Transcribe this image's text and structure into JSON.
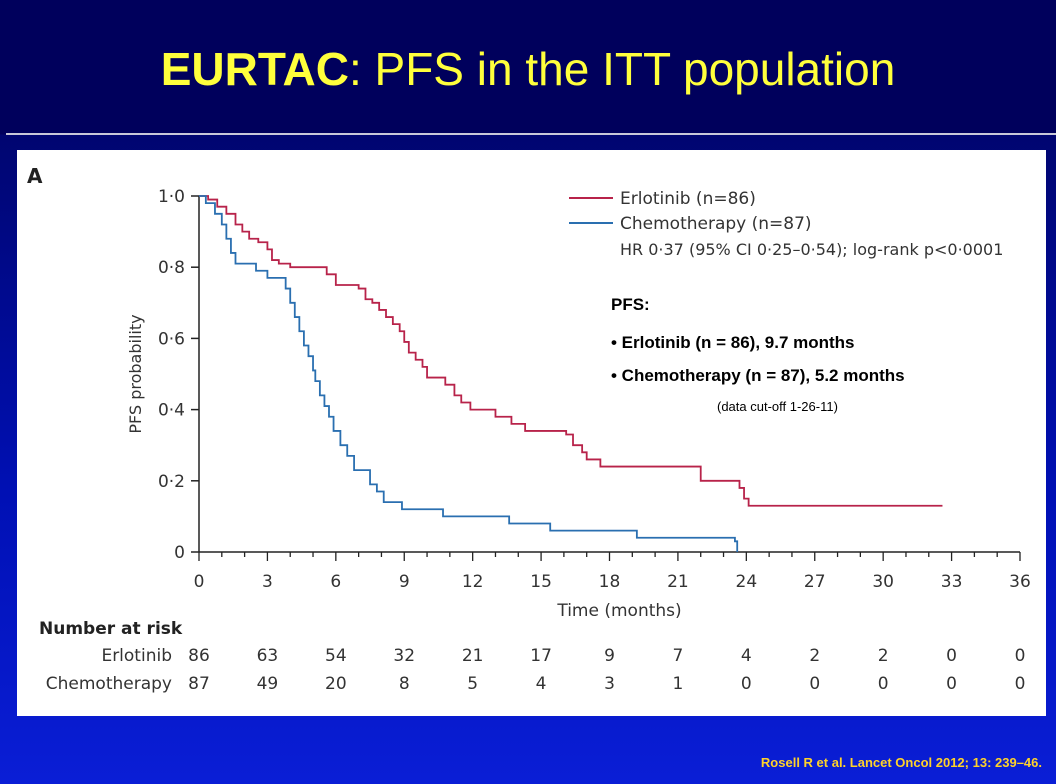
{
  "slide": {
    "title_bold": "EURTAC",
    "title_rest": ": PFS in the ITT population",
    "citation": "Rosell R et al. Lancet Oncol 2012; 13: 239–46.",
    "colors": {
      "title": "#ffff3c",
      "background": "#020266",
      "citation": "#ffd22a"
    }
  },
  "chart_data": {
    "type": "line",
    "panel_label": "A",
    "xlabel": "Time (months)",
    "ylabel": "PFS probability",
    "xlim": [
      0,
      36
    ],
    "ylim": [
      0,
      1
    ],
    "x_ticks": [
      "0",
      "3",
      "6",
      "9",
      "12",
      "15",
      "18",
      "21",
      "24",
      "27",
      "30",
      "33",
      "36"
    ],
    "y_ticks": [
      "0",
      "0·2",
      "0·4",
      "0·6",
      "0·8",
      "1·0"
    ],
    "legend": {
      "placement": "top-right",
      "entries": [
        "Erlotinib (n=86)",
        "Chemotherapy (n=87)"
      ],
      "note": "HR 0·37 (95% CI 0·25–0·54); log-rank p<0·0001"
    },
    "series": [
      {
        "name": "Erlotinib (n=86)",
        "color": "#b8234a",
        "steps": [
          [
            0,
            1.0
          ],
          [
            0.4,
            0.99
          ],
          [
            0.8,
            0.97
          ],
          [
            1.2,
            0.95
          ],
          [
            1.6,
            0.92
          ],
          [
            1.9,
            0.9
          ],
          [
            2.2,
            0.88
          ],
          [
            2.6,
            0.87
          ],
          [
            3.0,
            0.85
          ],
          [
            3.2,
            0.82
          ],
          [
            3.5,
            0.81
          ],
          [
            4.0,
            0.8
          ],
          [
            5.2,
            0.8
          ],
          [
            5.6,
            0.78
          ],
          [
            6.0,
            0.75
          ],
          [
            7.0,
            0.74
          ],
          [
            7.3,
            0.71
          ],
          [
            7.6,
            0.7
          ],
          [
            7.9,
            0.68
          ],
          [
            8.2,
            0.66
          ],
          [
            8.5,
            0.64
          ],
          [
            8.8,
            0.62
          ],
          [
            9.0,
            0.59
          ],
          [
            9.2,
            0.56
          ],
          [
            9.5,
            0.54
          ],
          [
            9.8,
            0.52
          ],
          [
            10.0,
            0.49
          ],
          [
            10.8,
            0.47
          ],
          [
            11.2,
            0.44
          ],
          [
            11.5,
            0.42
          ],
          [
            11.9,
            0.4
          ],
          [
            13.0,
            0.38
          ],
          [
            13.7,
            0.36
          ],
          [
            14.0,
            0.36
          ],
          [
            14.3,
            0.34
          ],
          [
            16.1,
            0.33
          ],
          [
            16.4,
            0.3
          ],
          [
            16.8,
            0.28
          ],
          [
            17.0,
            0.26
          ],
          [
            17.6,
            0.24
          ],
          [
            22.0,
            0.2
          ],
          [
            23.7,
            0.18
          ],
          [
            23.9,
            0.15
          ],
          [
            24.1,
            0.13
          ],
          [
            32.6,
            0.13
          ]
        ]
      },
      {
        "name": "Chemotherapy (n=87)",
        "color": "#2a6fb0",
        "steps": [
          [
            0,
            1.0
          ],
          [
            0.3,
            0.98
          ],
          [
            0.7,
            0.95
          ],
          [
            1.0,
            0.92
          ],
          [
            1.2,
            0.88
          ],
          [
            1.4,
            0.84
          ],
          [
            1.6,
            0.81
          ],
          [
            2.5,
            0.79
          ],
          [
            3.0,
            0.77
          ],
          [
            3.8,
            0.74
          ],
          [
            4.0,
            0.7
          ],
          [
            4.2,
            0.66
          ],
          [
            4.4,
            0.62
          ],
          [
            4.6,
            0.58
          ],
          [
            4.8,
            0.55
          ],
          [
            5.0,
            0.51
          ],
          [
            5.1,
            0.48
          ],
          [
            5.3,
            0.44
          ],
          [
            5.5,
            0.41
          ],
          [
            5.7,
            0.38
          ],
          [
            5.9,
            0.34
          ],
          [
            6.2,
            0.3
          ],
          [
            6.5,
            0.27
          ],
          [
            6.8,
            0.23
          ],
          [
            7.5,
            0.19
          ],
          [
            7.8,
            0.17
          ],
          [
            8.1,
            0.14
          ],
          [
            8.9,
            0.12
          ],
          [
            10.7,
            0.1
          ],
          [
            13.6,
            0.08
          ],
          [
            15.4,
            0.06
          ],
          [
            19.2,
            0.04
          ],
          [
            23.5,
            0.03
          ],
          [
            23.6,
            0.0
          ]
        ]
      }
    ],
    "annotation": {
      "heading": "PFS:",
      "lines": [
        "• Erlotinib (n = 86), 9.7 months",
        "• Chemotherapy (n = 87), 5.2 months"
      ],
      "cutoff": "(data cut-off 1-26-11)"
    },
    "risk_table": {
      "title": "Number at risk",
      "rows": [
        {
          "label": "Erlotinib",
          "values": [
            "86",
            "63",
            "54",
            "32",
            "21",
            "17",
            "9",
            "7",
            "4",
            "2",
            "2",
            "0",
            "0"
          ]
        },
        {
          "label": "Chemotherapy",
          "values": [
            "87",
            "49",
            "20",
            "8",
            "5",
            "4",
            "3",
            "1",
            "0",
            "0",
            "0",
            "0",
            "0"
          ]
        }
      ]
    }
  }
}
